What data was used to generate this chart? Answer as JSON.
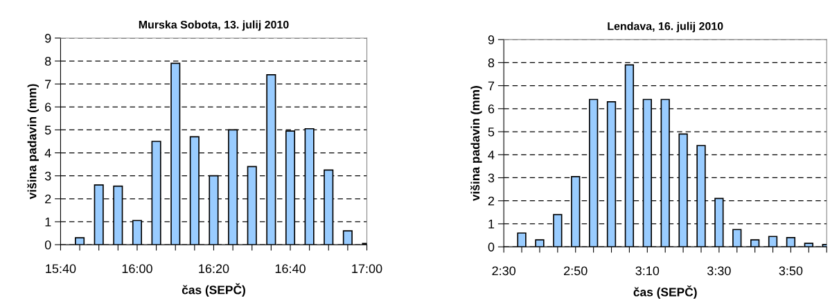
{
  "chart_data": [
    {
      "type": "bar",
      "title": "Murska Sobota, 13. julij 2010",
      "xlabel": "čas (SEPČ)",
      "ylabel": "višina padavin (mm)",
      "grid": "y",
      "line_style": "dashed",
      "x": [
        15.75,
        15.8333,
        15.9167,
        16.0,
        16.0833,
        16.1667,
        16.25,
        16.3333,
        16.4167,
        16.5,
        16.5833,
        16.6667,
        16.75,
        16.8333,
        16.9167,
        17.0
      ],
      "values": [
        0.3,
        2.6,
        2.55,
        1.05,
        4.5,
        7.9,
        4.7,
        3.0,
        5.0,
        3.4,
        7.4,
        4.95,
        5.05,
        3.25,
        0.6,
        0.05
      ],
      "color": "#99ccff",
      "xlim": [
        15.6667,
        17.0
      ],
      "xticks": [
        {
          "value": 15.6667,
          "label": "15:40"
        },
        {
          "value": 15.75,
          "label": null
        },
        {
          "value": 15.8333,
          "label": null
        },
        {
          "value": 15.9167,
          "label": null
        },
        {
          "value": 16.0,
          "label": "16:00"
        },
        {
          "value": 16.0833,
          "label": null
        },
        {
          "value": 16.1667,
          "label": null
        },
        {
          "value": 16.25,
          "label": null
        },
        {
          "value": 16.3333,
          "label": "16:20"
        },
        {
          "value": 16.4167,
          "label": null
        },
        {
          "value": 16.5,
          "label": null
        },
        {
          "value": 16.5833,
          "label": null
        },
        {
          "value": 16.6667,
          "label": "16:40"
        },
        {
          "value": 16.75,
          "label": null
        },
        {
          "value": 16.8333,
          "label": null
        },
        {
          "value": 16.9167,
          "label": null
        },
        {
          "value": 17.0,
          "label": "17:00"
        }
      ],
      "ylim": [
        0,
        9
      ],
      "yticks": [
        0,
        1,
        2,
        3,
        4,
        5,
        6,
        7,
        8,
        9
      ]
    },
    {
      "type": "bar",
      "title": "Lendava, 16. julij 2010",
      "xlabel": "čas (SEPČ)",
      "ylabel": "višina padavin (mm)",
      "grid": "y",
      "line_style": "dashed",
      "x": [
        2.5833,
        2.6667,
        2.75,
        2.8333,
        2.9167,
        3.0,
        3.0833,
        3.1667,
        3.25,
        3.3333,
        3.4167,
        3.5,
        3.5833,
        3.6667,
        3.75,
        3.8333,
        3.9167,
        4.0
      ],
      "values": [
        0.6,
        0.3,
        1.4,
        3.05,
        6.4,
        6.3,
        7.9,
        6.4,
        6.4,
        4.9,
        4.4,
        2.1,
        0.75,
        0.3,
        0.45,
        0.4,
        0.15,
        0.1
      ],
      "color": "#99ccff",
      "xlim": [
        2.5,
        4.0
      ],
      "xticks": [
        {
          "value": 2.5,
          "label": "2:30"
        },
        {
          "value": 2.5833,
          "label": null
        },
        {
          "value": 2.6667,
          "label": null
        },
        {
          "value": 2.75,
          "label": null
        },
        {
          "value": 2.8333,
          "label": "2:50"
        },
        {
          "value": 2.9167,
          "label": null
        },
        {
          "value": 3.0,
          "label": null
        },
        {
          "value": 3.0833,
          "label": null
        },
        {
          "value": 3.1667,
          "label": "3:10"
        },
        {
          "value": 3.25,
          "label": null
        },
        {
          "value": 3.3333,
          "label": null
        },
        {
          "value": 3.4167,
          "label": null
        },
        {
          "value": 3.5,
          "label": "3:30"
        },
        {
          "value": 3.5833,
          "label": null
        },
        {
          "value": 3.6667,
          "label": null
        },
        {
          "value": 3.75,
          "label": null
        },
        {
          "value": 3.8333,
          "label": "3:50"
        },
        {
          "value": 3.9167,
          "label": null
        },
        {
          "value": 4.0,
          "label": null
        }
      ],
      "ylim": [
        0,
        9
      ],
      "yticks": [
        0,
        1,
        2,
        3,
        4,
        5,
        6,
        7,
        8,
        9
      ]
    }
  ]
}
